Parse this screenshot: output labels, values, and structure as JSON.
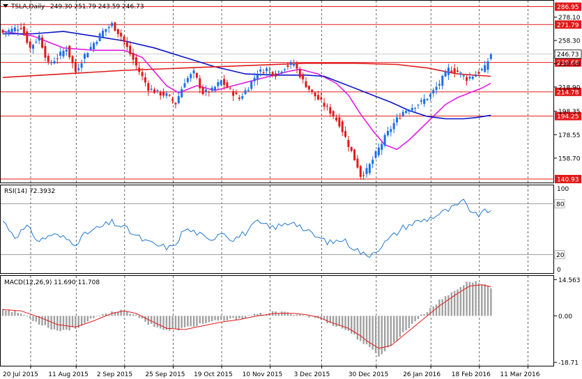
{
  "chart_data": {
    "type": "candlestick",
    "symbol_label": "TSLA,Daily",
    "ohlc_readout": "249.30 251.79 243.59 246.73",
    "price_panel": {
      "ylim": [
        138,
        292
      ],
      "y_tick_labels": [
        "278.10",
        "258.30",
        "238.68",
        "218.90",
        "198.35",
        "178.55",
        "158.70"
      ],
      "horizontal_levels": [
        {
          "label": "286.95",
          "value": 286.95
        },
        {
          "label": "271.79",
          "value": 271.79
        },
        {
          "label": "239.68",
          "value": 239.68
        },
        {
          "label": "214.78",
          "value": 214.78
        },
        {
          "label": "194.25",
          "value": 194.25
        },
        {
          "label": "140.93",
          "value": 140.93
        }
      ],
      "last_price_label": "246.73",
      "last_price": 246.73,
      "candle_anchors": [
        [
          0,
          265
        ],
        [
          6,
          270
        ],
        [
          9,
          252
        ],
        [
          12,
          262
        ],
        [
          15,
          238
        ],
        [
          18,
          244
        ],
        [
          21,
          252
        ],
        [
          24,
          232
        ],
        [
          27,
          246
        ],
        [
          30,
          256
        ],
        [
          33,
          266
        ],
        [
          36,
          272
        ],
        [
          39,
          262
        ],
        [
          42,
          247
        ],
        [
          45,
          232
        ],
        [
          48,
          218
        ],
        [
          51,
          214
        ],
        [
          54,
          212
        ],
        [
          57,
          205
        ],
        [
          60,
          224
        ],
        [
          63,
          231
        ],
        [
          66,
          214
        ],
        [
          69,
          216
        ],
        [
          72,
          224
        ],
        [
          75,
          216
        ],
        [
          78,
          209
        ],
        [
          81,
          219
        ],
        [
          84,
          231
        ],
        [
          87,
          234
        ],
        [
          90,
          230
        ],
        [
          93,
          236
        ],
        [
          96,
          239
        ],
        [
          99,
          224
        ],
        [
          102,
          214
        ],
        [
          105,
          206
        ],
        [
          108,
          198
        ],
        [
          111,
          188
        ],
        [
          114,
          170
        ],
        [
          117,
          152
        ],
        [
          118,
          144
        ],
        [
          120,
          148
        ],
        [
          123,
          162
        ],
        [
          126,
          176
        ],
        [
          129,
          188
        ],
        [
          132,
          198
        ],
        [
          135,
          202
        ],
        [
          138,
          206
        ],
        [
          141,
          212
        ],
        [
          144,
          222
        ],
        [
          147,
          234
        ],
        [
          150,
          232
        ],
        [
          153,
          226
        ],
        [
          156,
          230
        ],
        [
          159,
          235
        ],
        [
          161,
          247
        ]
      ],
      "indicator_lines": [
        {
          "name": "sma_fast",
          "color": "#e51ce5",
          "points": [
            [
              0,
              266
            ],
            [
              10,
              262
            ],
            [
              20,
              252
            ],
            [
              30,
              250
            ],
            [
              40,
              250
            ],
            [
              46,
              244
            ],
            [
              50,
              232
            ],
            [
              54,
              220
            ],
            [
              58,
              214
            ],
            [
              64,
              220
            ],
            [
              70,
              216
            ],
            [
              76,
              220
            ],
            [
              82,
              224
            ],
            [
              88,
              228
            ],
            [
              94,
              232
            ],
            [
              98,
              234
            ],
            [
              104,
              230
            ],
            [
              110,
              222
            ],
            [
              114,
              212
            ],
            [
              118,
              196
            ],
            [
              122,
              182
            ],
            [
              126,
              170
            ],
            [
              130,
              166
            ],
            [
              134,
              174
            ],
            [
              138,
              184
            ],
            [
              142,
              194
            ],
            [
              146,
              204
            ],
            [
              150,
              210
            ],
            [
              154,
              214
            ],
            [
              158,
              218
            ],
            [
              161,
              222
            ]
          ]
        },
        {
          "name": "sma_mid",
          "color": "#0a14c8",
          "points": [
            [
              0,
              264
            ],
            [
              10,
              264
            ],
            [
              20,
              266
            ],
            [
              30,
              262
            ],
            [
              40,
              258
            ],
            [
              50,
              252
            ],
            [
              60,
              244
            ],
            [
              70,
              236
            ],
            [
              80,
              230
            ],
            [
              90,
              229
            ],
            [
              100,
              229
            ],
            [
              106,
              228
            ],
            [
              112,
              222
            ],
            [
              120,
              214
            ],
            [
              128,
              206
            ],
            [
              134,
              199
            ],
            [
              140,
              194
            ],
            [
              146,
              192
            ],
            [
              152,
              192
            ],
            [
              156,
              193
            ],
            [
              161,
              195
            ]
          ]
        },
        {
          "name": "sma_slow",
          "color": "#e11919",
          "points": [
            [
              0,
              227
            ],
            [
              20,
              230
            ],
            [
              40,
              233
            ],
            [
              60,
              235
            ],
            [
              80,
              237
            ],
            [
              100,
              239
            ],
            [
              116,
              239
            ],
            [
              130,
              238
            ],
            [
              140,
              235
            ],
            [
              150,
              230
            ],
            [
              161,
              228
            ]
          ]
        }
      ]
    },
    "rsi_panel": {
      "label": "RSI(14) 72.3932",
      "ylim": [
        0,
        100
      ],
      "levels": [
        {
          "label": "80",
          "value": 80
        },
        {
          "label": "20",
          "value": 20
        }
      ],
      "scale_labels": [
        "100",
        "0"
      ],
      "current": 72.3932,
      "series_anchors": [
        [
          0,
          60
        ],
        [
          4,
          42
        ],
        [
          8,
          52
        ],
        [
          12,
          36
        ],
        [
          16,
          44
        ],
        [
          20,
          40
        ],
        [
          24,
          34
        ],
        [
          28,
          46
        ],
        [
          32,
          52
        ],
        [
          36,
          58
        ],
        [
          40,
          52
        ],
        [
          44,
          42
        ],
        [
          48,
          34
        ],
        [
          52,
          30
        ],
        [
          56,
          28
        ],
        [
          60,
          50
        ],
        [
          64,
          46
        ],
        [
          68,
          36
        ],
        [
          72,
          48
        ],
        [
          76,
          38
        ],
        [
          80,
          46
        ],
        [
          84,
          58
        ],
        [
          88,
          52
        ],
        [
          92,
          54
        ],
        [
          96,
          60
        ],
        [
          100,
          48
        ],
        [
          104,
          40
        ],
        [
          108,
          34
        ],
        [
          112,
          38
        ],
        [
          116,
          28
        ],
        [
          120,
          18
        ],
        [
          124,
          28
        ],
        [
          128,
          40
        ],
        [
          132,
          52
        ],
        [
          136,
          58
        ],
        [
          140,
          62
        ],
        [
          144,
          68
        ],
        [
          148,
          74
        ],
        [
          152,
          82
        ],
        [
          156,
          66
        ],
        [
          161,
          72.39
        ]
      ]
    },
    "macd_panel": {
      "label": "MACD(12,26,9) 11.690 11.708",
      "ylim": [
        -19.5,
        15.5
      ],
      "scale_labels": [
        {
          "label": "14.563",
          "value": 14.563
        },
        {
          "label": "0.00",
          "value": 0
        },
        {
          "label": "-18.71",
          "value": -18.71
        }
      ],
      "histogram_anchors": [
        [
          0,
          3
        ],
        [
          6,
          1
        ],
        [
          12,
          -3
        ],
        [
          18,
          -6
        ],
        [
          24,
          -5
        ],
        [
          30,
          -1
        ],
        [
          36,
          1.5
        ],
        [
          40,
          2.5
        ],
        [
          44,
          0
        ],
        [
          48,
          -3
        ],
        [
          54,
          -6
        ],
        [
          60,
          -5
        ],
        [
          66,
          -3
        ],
        [
          72,
          -2
        ],
        [
          78,
          -1
        ],
        [
          84,
          0.5
        ],
        [
          90,
          1.5
        ],
        [
          96,
          1
        ],
        [
          100,
          0
        ],
        [
          104,
          -1
        ],
        [
          108,
          -3
        ],
        [
          114,
          -6
        ],
        [
          118,
          -10
        ],
        [
          120,
          -12
        ],
        [
          124,
          -16
        ],
        [
          128,
          -12
        ],
        [
          132,
          -7
        ],
        [
          136,
          -2
        ],
        [
          140,
          2
        ],
        [
          144,
          6
        ],
        [
          150,
          11
        ],
        [
          154,
          14
        ],
        [
          158,
          13
        ],
        [
          161,
          11.69
        ]
      ],
      "signal_anchors": [
        [
          0,
          2.5
        ],
        [
          6,
          2
        ],
        [
          12,
          -0.5
        ],
        [
          18,
          -3.5
        ],
        [
          24,
          -4.5
        ],
        [
          30,
          -2
        ],
        [
          36,
          1
        ],
        [
          40,
          2
        ],
        [
          44,
          1
        ],
        [
          48,
          -1.5
        ],
        [
          54,
          -5
        ],
        [
          60,
          -5.5
        ],
        [
          66,
          -4
        ],
        [
          72,
          -2.5
        ],
        [
          78,
          -1.5
        ],
        [
          84,
          0
        ],
        [
          90,
          1
        ],
        [
          96,
          1
        ],
        [
          100,
          0.5
        ],
        [
          104,
          -0.5
        ],
        [
          108,
          -2.5
        ],
        [
          114,
          -5
        ],
        [
          118,
          -8
        ],
        [
          120,
          -10
        ],
        [
          124,
          -13
        ],
        [
          128,
          -12
        ],
        [
          132,
          -8
        ],
        [
          136,
          -4
        ],
        [
          140,
          0
        ],
        [
          144,
          4
        ],
        [
          150,
          9
        ],
        [
          154,
          12
        ],
        [
          158,
          12.5
        ],
        [
          161,
          11.708
        ]
      ]
    },
    "date_labels": [
      {
        "label": "20 Jul 2015",
        "index": 0
      },
      {
        "label": "11 Aug 2015",
        "index": 15
      },
      {
        "label": "2 Sep 2015",
        "index": 31
      },
      {
        "label": "25 Sep 2015",
        "index": 47
      },
      {
        "label": "19 Oct 2015",
        "index": 63
      },
      {
        "label": "10 Nov 2015",
        "index": 79
      },
      {
        "label": "3 Dec 2015",
        "index": 96
      },
      {
        "label": "30 Dec 2015",
        "index": 114
      },
      {
        "label": "26 Jan 2016",
        "index": 132
      },
      {
        "label": "18 Feb 2016",
        "index": 148
      },
      {
        "label": "11 Mar 2016",
        "index": 164
      }
    ],
    "colors": {
      "bull_candle": "#1e6ee6",
      "bear_candle": "#e11919",
      "level_line": "#e11919",
      "rsi_line": "#1e78d2",
      "macd_histogram": "#a0a0a0",
      "macd_signal": "#e11919",
      "grid": "#000000"
    }
  }
}
